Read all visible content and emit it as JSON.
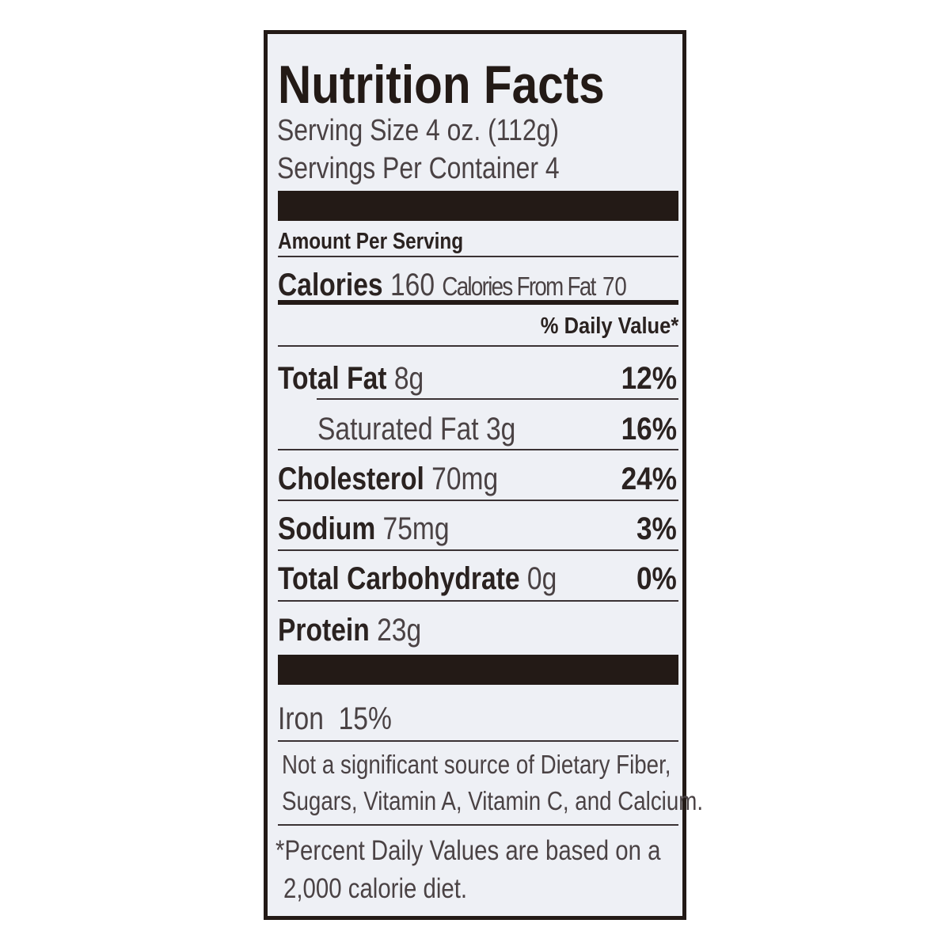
{
  "title": "Nutrition Facts",
  "serving_size": "Serving Size 4 oz. (112g)",
  "servings_per_container": "Servings Per Container 4",
  "amount_per_serving": "Amount Per Serving",
  "calories": {
    "label": "Calories",
    "value": "160",
    "from_fat_label": "Calories From Fat",
    "from_fat_value": "70"
  },
  "daily_value_header": "% Daily Value*",
  "nutrients": [
    {
      "name": "Total Fat",
      "amount": "8g",
      "dv": "12%"
    },
    {
      "name": "Saturated Fat",
      "amount": "3g",
      "dv": "16%"
    },
    {
      "name": "Cholesterol",
      "amount": "70mg",
      "dv": "24%"
    },
    {
      "name": "Sodium",
      "amount": "75mg",
      "dv": "3%"
    },
    {
      "name": "Total Carbohydrate",
      "amount": "0g",
      "dv": "0%"
    },
    {
      "name": "Protein",
      "amount": "23g"
    }
  ],
  "vitamins": [
    {
      "name": "Iron",
      "dv": "15%"
    }
  ],
  "not_significant": [
    "Not a significant source of Dietary Fiber,",
    "Sugars, Vitamin A, Vitamin C, and Calcium."
  ],
  "footnote": [
    "*Percent Daily Values are based on a",
    "2,000 calorie diet."
  ],
  "colors": {
    "ink": "#231a16",
    "background": "#eef0f5"
  }
}
